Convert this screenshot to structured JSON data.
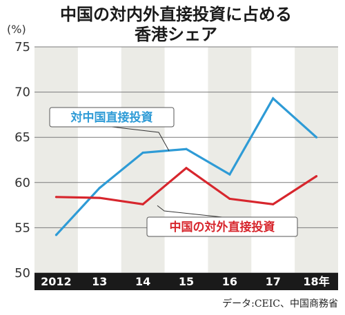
{
  "title_line1": "中国の対内外直接投資に占める",
  "title_line2": "香港シェア",
  "y_unit": "(%)",
  "source": "データ:CEIC、中国商務省",
  "colors": {
    "inward": "#2e9bd6",
    "outward": "#d7262d",
    "band": "#ebebe6",
    "axis_bar": "#1a1a1a"
  },
  "chart_data": {
    "type": "line",
    "categories": [
      "2012",
      "13",
      "14",
      "15",
      "16",
      "17",
      "18年"
    ],
    "yticks": [
      50,
      55,
      60,
      65,
      70,
      75
    ],
    "ylim": [
      50,
      75
    ],
    "grid": true,
    "series": [
      {
        "name": "対中国直接投資",
        "color": "#2e9bd6",
        "values": [
          54.2,
          59.4,
          63.3,
          63.7,
          60.9,
          69.3,
          65.0
        ]
      },
      {
        "name": "中国の対外直接投資",
        "color": "#d7262d",
        "values": [
          58.4,
          58.3,
          57.6,
          61.6,
          58.2,
          57.6,
          60.7
        ]
      }
    ]
  }
}
